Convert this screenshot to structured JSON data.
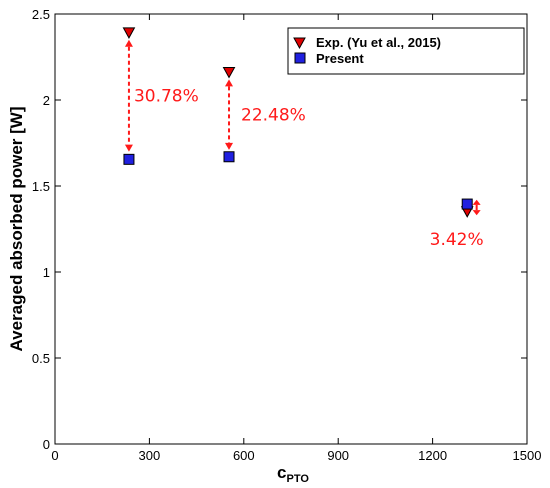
{
  "chart_data": {
    "type": "scatter",
    "title": "",
    "xlabel": "c",
    "xlabel_sub": "PTO",
    "ylabel": "Averaged absorbed power [W]",
    "xlim": [
      0,
      1500
    ],
    "ylim": [
      0,
      2.5
    ],
    "xticks": [
      0,
      300,
      600,
      900,
      1200,
      1500
    ],
    "xtick_labels": [
      "0",
      "300",
      "600",
      "900",
      "1200",
      "1500"
    ],
    "yticks": [
      0,
      0.5,
      1,
      1.5,
      2,
      2.5
    ],
    "ytick_labels": [
      "0",
      "0.5",
      "1",
      "1.5",
      "2",
      "2.5"
    ],
    "grid": false,
    "legend_position": "top-right",
    "series": [
      {
        "name": "Exp. (Yu et al., 2015)",
        "marker": "triangle-down",
        "color": "#e00000",
        "x": [
          235,
          553,
          1310
        ],
        "y": [
          2.39,
          2.16,
          1.35
        ]
      },
      {
        "name": "Present",
        "marker": "square",
        "color": "#2020e0",
        "x": [
          235,
          553,
          1310
        ],
        "y": [
          1.655,
          1.67,
          1.395
        ]
      }
    ],
    "annotations": [
      {
        "text": "30.78%",
        "x": 235,
        "y_from": 1.7,
        "y_to": 2.35
      },
      {
        "text": "22.48%",
        "x": 553,
        "y_from": 1.71,
        "y_to": 2.12
      },
      {
        "text": "3.42%",
        "x": 1340,
        "y_from": 1.33,
        "y_to": 1.42
      }
    ],
    "annotation_color": "#ff1a1a"
  }
}
